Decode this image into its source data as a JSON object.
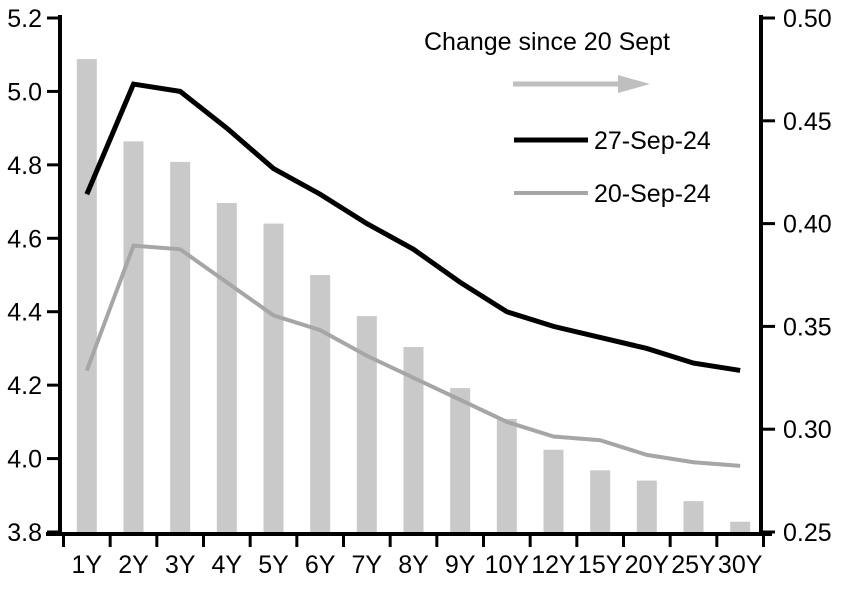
{
  "chart_data": {
    "type": "combo-bar-line",
    "title": "",
    "categories": [
      "1Y",
      "2Y",
      "3Y",
      "4Y",
      "5Y",
      "6Y",
      "7Y",
      "8Y",
      "9Y",
      "10Y",
      "12Y",
      "15Y",
      "20Y",
      "25Y",
      "30Y"
    ],
    "series": [
      {
        "name": "Change since 20 Sept",
        "type": "bar",
        "axis": "right",
        "color": "#c9c9c9",
        "values": [
          0.48,
          0.44,
          0.43,
          0.41,
          0.4,
          0.375,
          0.355,
          0.34,
          0.32,
          0.305,
          0.29,
          0.28,
          0.275,
          0.265,
          0.255
        ]
      },
      {
        "name": "27-Sep-24",
        "type": "line",
        "axis": "left",
        "color": "#000000",
        "values": [
          4.72,
          5.02,
          5.0,
          4.9,
          4.79,
          4.72,
          4.64,
          4.57,
          4.48,
          4.4,
          4.36,
          4.33,
          4.3,
          4.26,
          4.24
        ]
      },
      {
        "name": "20-Sep-24",
        "type": "line",
        "axis": "left",
        "color": "#a6a6a6",
        "values": [
          4.24,
          4.58,
          4.57,
          4.48,
          4.39,
          4.35,
          4.28,
          4.22,
          4.16,
          4.1,
          4.06,
          4.05,
          4.01,
          3.99,
          3.98
        ]
      }
    ],
    "left_axis": {
      "min": 3.8,
      "max": 5.2,
      "tick_labels": [
        "5.2",
        "5.0",
        "4.8",
        "4.6",
        "4.4",
        "4.2",
        "4.0",
        "3.8"
      ]
    },
    "right_axis": {
      "min": 0.25,
      "max": 0.5,
      "tick_labels": [
        "0.50",
        "0.45",
        "0.40",
        "0.35",
        "0.30",
        "0.25"
      ]
    },
    "grid": "off",
    "legend": {
      "position": "top-right-inside",
      "arrow_label": "Change since 20 Sept",
      "arrow_color": "#bfbfbf",
      "items": [
        {
          "label": "27-Sep-24",
          "color": "#000000"
        },
        {
          "label": "20-Sep-24",
          "color": "#a6a6a6"
        }
      ]
    }
  }
}
